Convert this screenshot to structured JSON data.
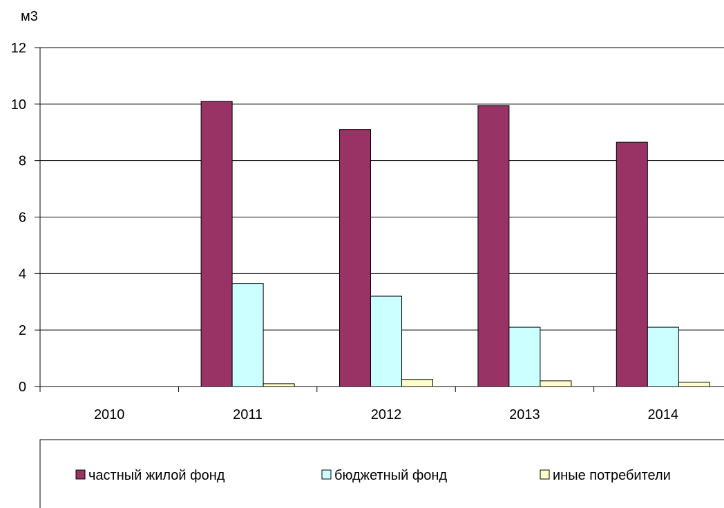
{
  "chart_data": {
    "type": "bar",
    "title": "",
    "ylabel": "м3",
    "xlabel": "",
    "categories": [
      "2010",
      "2011",
      "2012",
      "2013",
      "2014"
    ],
    "series": [
      {
        "name": "частный жилой фонд",
        "color": "#993366",
        "values": [
          0,
          10.1,
          9.1,
          9.95,
          8.65
        ]
      },
      {
        "name": "бюджетный фонд",
        "color": "#ccffff",
        "values": [
          0,
          3.65,
          3.2,
          2.1,
          2.1
        ]
      },
      {
        "name": "иные потребители",
        "color": "#ffffcc",
        "values": [
          0,
          0.1,
          0.25,
          0.2,
          0.15
        ]
      }
    ],
    "ylim": [
      0,
      12
    ],
    "yticks": [
      0,
      2,
      4,
      6,
      8,
      10,
      12
    ],
    "ytick_labels": [
      "0",
      "2",
      "4",
      "6",
      "8",
      "10",
      "12"
    ],
    "grid": true,
    "legend_position": "bottom"
  }
}
